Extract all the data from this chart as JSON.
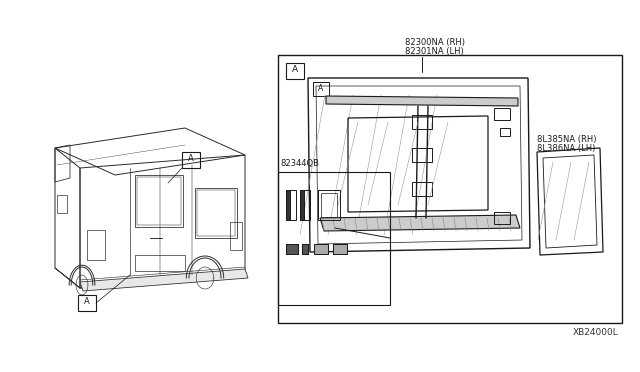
{
  "bg_color": "#ffffff",
  "line_color": "#1a1a1a",
  "light_line": "#999999",
  "diagram_label": "XB24000L",
  "part_labels": {
    "main_glass_rh": "82300NA (RH)",
    "main_glass_lh": "82301NA (LH)",
    "small_glass_rh": "8L385NA (RH)",
    "small_glass_lh": "8L386NA (LH)",
    "kit_label": "82344QB"
  },
  "callout_A": "A",
  "van": {
    "body_color": "#2a2a2a",
    "lw": 0.7
  }
}
